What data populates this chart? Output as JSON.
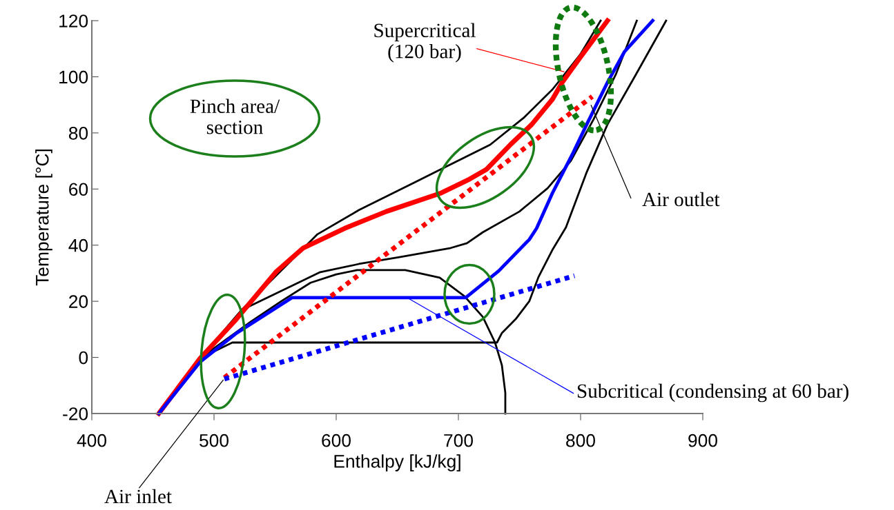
{
  "chart_data": {
    "type": "line",
    "xlabel": "Enthalpy [kJ/kg]",
    "ylabel": "Temperature [°C]",
    "xlim": [
      400,
      900
    ],
    "xticks": [
      400,
      500,
      600,
      700,
      800,
      900
    ],
    "ylim": [
      -20,
      120
    ],
    "yticks": [
      {
        "value": -20,
        "label": "-20"
      },
      0,
      20,
      40,
      60,
      80,
      100,
      120
    ],
    "grid": false,
    "legend": false,
    "marker": "none",
    "series": [
      {
        "color": "#000000",
        "line_style": "solid",
        "x": [
          454.8,
          488.7,
          522.6,
          562,
          584.7,
          618.6,
          663.8,
          692,
          726,
          754,
          777,
          799.8,
          816.4
        ],
        "values": [
          -20,
          -0.3,
          16.9,
          34,
          43.9,
          52.5,
          62.3,
          68.4,
          75.8,
          85.6,
          95.5,
          108,
          120
        ]
      },
      {
        "color": "#000000",
        "line_style": "solid",
        "x": [
          454.8,
          488.7,
          528,
          566,
          586.4,
          618.6,
          652.5,
          693.8,
          707,
          720,
          750,
          773,
          792,
          810.7,
          829,
          846
        ],
        "values": [
          -20,
          -0.3,
          18,
          26,
          30.3,
          33.3,
          35.8,
          39,
          40.7,
          44.6,
          52,
          60.3,
          70,
          84.9,
          101,
          120
        ]
      },
      {
        "color": "#000000",
        "line_style": "solid",
        "x": [
          454.8,
          488.7,
          530,
          555,
          579,
          600,
          617,
          656.5,
          684.7,
          705,
          720,
          730,
          735.6,
          738.4,
          738.4
        ],
        "values": [
          -20,
          -0.3,
          12.7,
          20,
          26.6,
          29.6,
          31.1,
          31.1,
          28.4,
          21.8,
          14.4,
          5.3,
          -2.8,
          -12.6,
          -20
        ]
      },
      {
        "color": "#000000",
        "line_style": "solid",
        "x": [
          454.8,
          488.7,
          515,
          731.6,
          735.6,
          747,
          758,
          765.5,
          776.8,
          788,
          805,
          822,
          844.6,
          870
        ],
        "values": [
          -20,
          -0.3,
          5.3,
          5.3,
          8.7,
          13.7,
          20,
          28.6,
          38.2,
          46.3,
          66,
          83,
          100.3,
          120
        ]
      },
      {
        "color": "#ff0000",
        "line_style": "solid",
        "x": [
          454.8,
          488.7,
          517,
          551,
          573,
          607,
          641,
          686,
          709,
          723,
          743,
          760,
          777,
          785,
          799,
          822
        ],
        "values": [
          -20,
          -0.3,
          13,
          30.6,
          39,
          46,
          52,
          58.6,
          63.5,
          67,
          76,
          83,
          92,
          98,
          106.5,
          120
        ]
      },
      {
        "color": "#0000ff",
        "line_style": "solid",
        "x": [
          454.8,
          488.7,
          518.6,
          563.8,
          706,
          733,
          758,
          764,
          777,
          794,
          805,
          822,
          836,
          859
        ],
        "values": [
          -20,
          -1.6,
          8.7,
          21.3,
          21.3,
          30.8,
          42,
          46,
          58.6,
          73,
          83,
          98,
          109,
          120
        ]
      },
      {
        "color": "#ff0000",
        "line_style": "dotted",
        "x": [
          508.5,
          809.6
        ],
        "values": [
          -7.2,
          93
        ]
      },
      {
        "color": "#0000ff",
        "line_style": "dotted",
        "x": [
          508.5,
          795
        ],
        "values": [
          -7.7,
          29.1
        ]
      }
    ],
    "annotations": [
      "Pinch area/\nsection",
      {
        "text": "Supercritical\n(120 bar)",
        "x": 788,
        "y": 101.6
      },
      {
        "text": "Air outlet",
        "x": 808,
        "y": 90.5
      },
      {
        "text": "Subcritical (condensing at 60 bar)",
        "x": 658,
        "y": 21.3
      },
      {
        "text": "Air inlet",
        "x": 508.5,
        "y": -7.5
      }
    ]
  }
}
